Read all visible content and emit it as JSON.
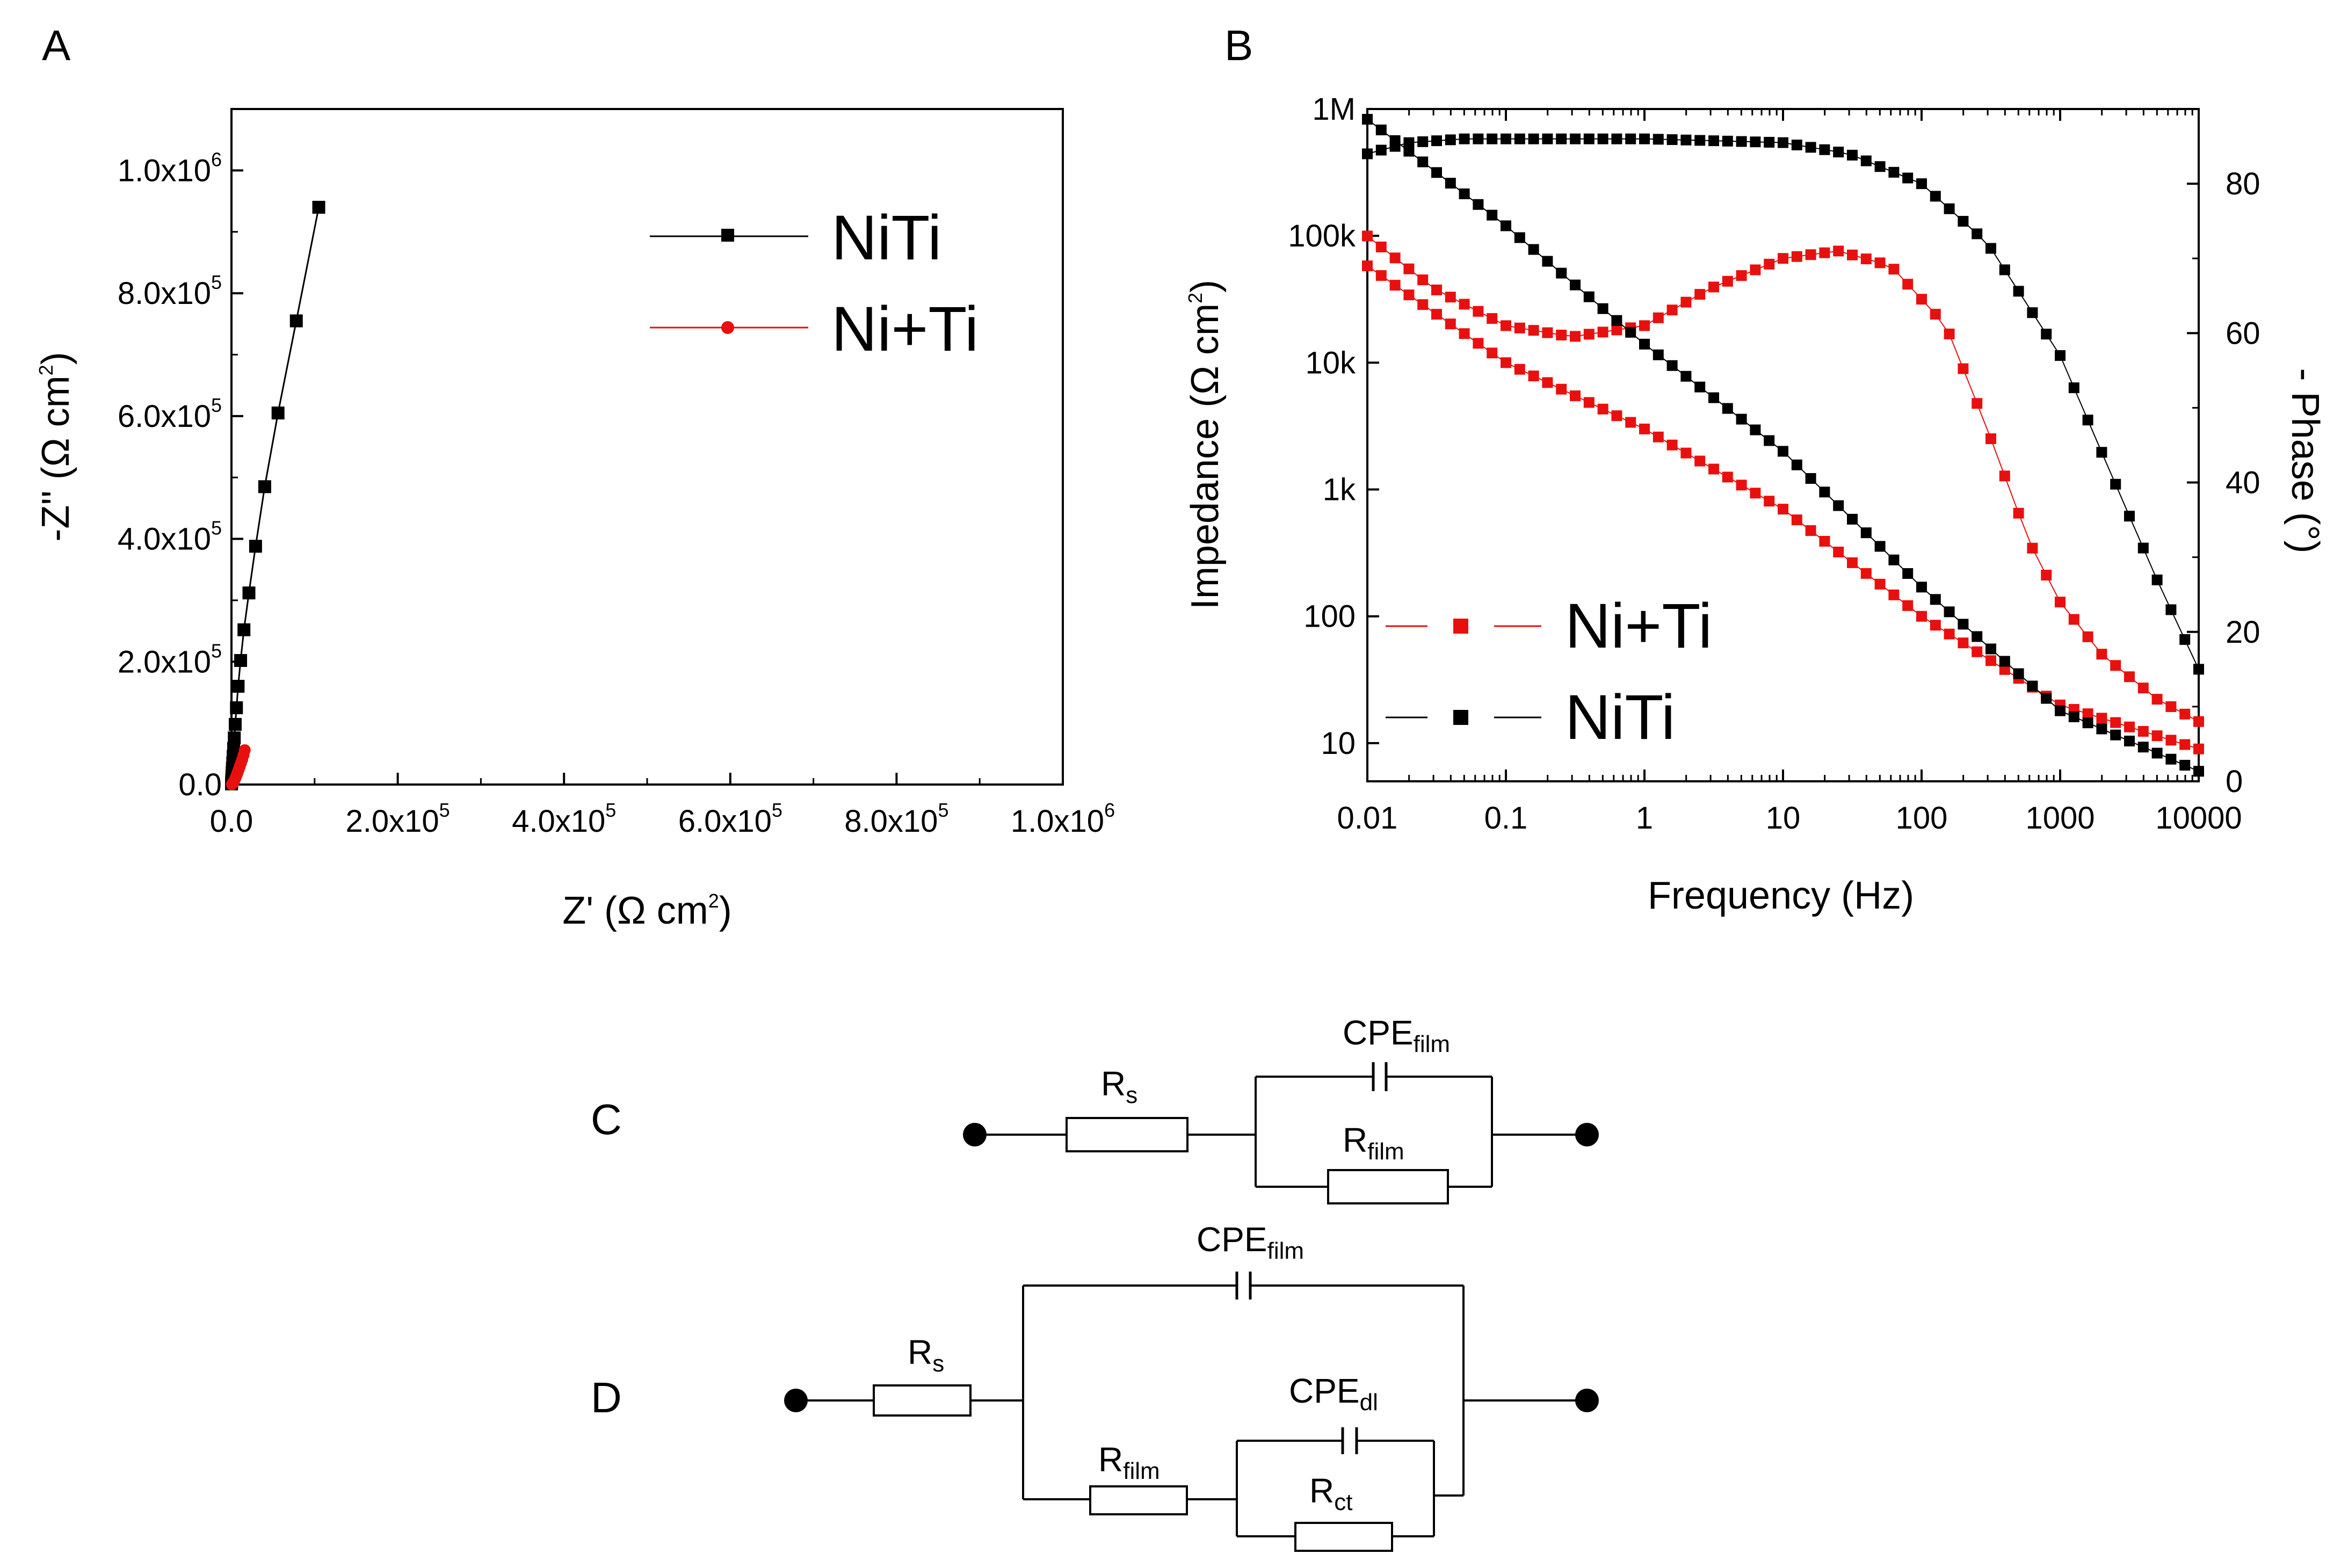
{
  "colors": {
    "NiTi": "#000000",
    "NiTiAlloy": "#000000",
    "Ni+Ti": "#e8100f"
  },
  "panels": {
    "A": "A",
    "B": "B",
    "C": "C",
    "D": "D"
  },
  "chart_data": [
    {
      "panel": "A",
      "type": "line",
      "title": "",
      "xlabel": {
        "main": "Z' (",
        "omega": "Ω",
        "unit": " cm",
        "sup": "2",
        "close": ")"
      },
      "ylabel": {
        "main": "-Z'' (",
        "omega": "Ω",
        "unit": " cm",
        "sup": "2",
        "close": ")"
      },
      "xlim": [
        0,
        1000000
      ],
      "ylim": [
        0,
        1100000
      ],
      "x_ticks": [
        {
          "value": 0,
          "mant": "0.0",
          "exp": ""
        },
        {
          "value": 200000,
          "mant": "2.0x10",
          "exp": "5"
        },
        {
          "value": 400000,
          "mant": "4.0x10",
          "exp": "5"
        },
        {
          "value": 600000,
          "mant": "6.0x10",
          "exp": "5"
        },
        {
          "value": 800000,
          "mant": "8.0x10",
          "exp": "5"
        },
        {
          "value": 1000000,
          "mant": "1.0x10",
          "exp": "6"
        }
      ],
      "y_ticks": [
        {
          "value": 0,
          "mant": "0.0",
          "exp": ""
        },
        {
          "value": 200000,
          "mant": "2.0x10",
          "exp": "5"
        },
        {
          "value": 400000,
          "mant": "4.0x10",
          "exp": "5"
        },
        {
          "value": 600000,
          "mant": "6.0x10",
          "exp": "5"
        },
        {
          "value": 800000,
          "mant": "8.0x10",
          "exp": "5"
        },
        {
          "value": 1000000,
          "mant": "1.0x10",
          "exp": "6"
        }
      ],
      "legend": {
        "position": "top-right"
      },
      "series": [
        {
          "name": "NiTi",
          "colorKey": "NiTi",
          "marker": "square",
          "points": [
            [
              105000,
              940000
            ],
            [
              78000,
              755000
            ],
            [
              56000,
              605000
            ],
            [
              40000,
              485000
            ],
            [
              29000,
              388000
            ],
            [
              21000,
              312000
            ],
            [
              15000,
              252000
            ],
            [
              11000,
              202000
            ],
            [
              8000,
              160000
            ],
            [
              6000,
              125000
            ],
            [
              4500,
              98000
            ],
            [
              3400,
              76000
            ],
            [
              2600,
              59000
            ],
            [
              2000,
              46000
            ],
            [
              1500,
              35000
            ],
            [
              1100,
              26000
            ],
            [
              800,
              19000
            ],
            [
              600,
              13500
            ],
            [
              400,
              9000
            ],
            [
              250,
              5500
            ],
            [
              150,
              3000
            ],
            [
              80,
              1000
            ]
          ]
        },
        {
          "name": "Ni+Ti",
          "colorKey": "Ni+Ti",
          "marker": "circle",
          "points": [
            [
              16000,
              56000
            ],
            [
              14500,
              48000
            ],
            [
              13000,
              41000
            ],
            [
              11500,
              35000
            ],
            [
              10000,
              29500
            ],
            [
              8700,
              24500
            ],
            [
              7500,
              20000
            ],
            [
              6400,
              16000
            ],
            [
              5400,
              12500
            ],
            [
              4500,
              9500
            ],
            [
              3600,
              7000
            ],
            [
              2800,
              5000
            ],
            [
              2100,
              3300
            ],
            [
              1500,
              2000
            ],
            [
              1000,
              1000
            ],
            [
              500,
              300
            ]
          ]
        }
      ]
    },
    {
      "panel": "B",
      "type": "scatter",
      "title": "",
      "xlabel": "Frequency (Hz)",
      "ylabel": {
        "main": "Impedance (",
        "omega": "Ω",
        "unit": " cm",
        "sup": "2",
        "close": ")"
      },
      "y2label": {
        "main": "- Phase (",
        "deg": "°",
        "close": ")"
      },
      "xscale": "log",
      "yscale": "log",
      "xlim": [
        0.01,
        10000
      ],
      "ylim": [
        5,
        1000000
      ],
      "y2lim": [
        0,
        90
      ],
      "x_ticks": [
        {
          "value": 0.01,
          "label": "0.01"
        },
        {
          "value": 0.1,
          "label": "0.1"
        },
        {
          "value": 1,
          "label": "1"
        },
        {
          "value": 10,
          "label": "10"
        },
        {
          "value": 100,
          "label": "100"
        },
        {
          "value": 1000,
          "label": "1000"
        },
        {
          "value": 10000,
          "label": "10000"
        }
      ],
      "y_ticks": [
        {
          "value": 10,
          "label": "10"
        },
        {
          "value": 100,
          "label": "100"
        },
        {
          "value": 1000,
          "label": "1k"
        },
        {
          "value": 10000,
          "label": "10k"
        },
        {
          "value": 100000,
          "label": "100k"
        },
        {
          "value": 1000000,
          "label": "1M"
        }
      ],
      "y2_ticks": [
        {
          "value": 0,
          "label": "0"
        },
        {
          "value": 20,
          "label": "20"
        },
        {
          "value": 40,
          "label": "40"
        },
        {
          "value": 60,
          "label": "60"
        },
        {
          "value": 80,
          "label": "80"
        }
      ],
      "legend": {
        "position": "bottom-left"
      },
      "series": [
        {
          "name": "Ni+Ti",
          "colorKey": "Ni+Ti",
          "axis": "left",
          "anchors": [
            [
              0.01,
              58000
            ],
            [
              0.1,
              10000
            ],
            [
              1,
              3000
            ],
            [
              10,
              700
            ],
            [
              100,
              100
            ],
            [
              1000,
              20
            ],
            [
              10000,
              9
            ]
          ]
        },
        {
          "name": "",
          "colorKey": "Ni+Ti",
          "axis": "right",
          "anchors": [
            [
              0.01,
              73
            ],
            [
              0.03,
              66
            ],
            [
              0.1,
              61
            ],
            [
              0.3,
              59.5
            ],
            [
              1,
              61
            ],
            [
              3,
              66
            ],
            [
              10,
              70
            ],
            [
              25,
              71
            ],
            [
              60,
              69
            ],
            [
              150,
              61
            ],
            [
              300,
              47
            ],
            [
              600,
              32
            ],
            [
              1000,
              24
            ],
            [
              2000,
              17
            ],
            [
              5000,
              11
            ],
            [
              10000,
              8
            ]
          ]
        },
        {
          "name": "NiTi",
          "colorKey": "NiTi",
          "axis": "left",
          "anchors": [
            [
              0.01,
              830000
            ],
            [
              0.1,
              120000
            ],
            [
              1,
              14000
            ],
            [
              10,
              2000
            ],
            [
              100,
              170
            ],
            [
              1000,
              18
            ],
            [
              10000,
              6
            ]
          ]
        },
        {
          "name": "",
          "colorKey": "NiTiAlloy",
          "axis": "right",
          "anchors": [
            [
              0.01,
              84
            ],
            [
              0.02,
              85.5
            ],
            [
              0.05,
              86
            ],
            [
              1,
              86
            ],
            [
              10,
              85.5
            ],
            [
              30,
              84
            ],
            [
              100,
              80
            ],
            [
              300,
              72
            ],
            [
              1000,
              57
            ],
            [
              2000,
              44
            ],
            [
              5000,
              27
            ],
            [
              10000,
              15
            ]
          ]
        }
      ]
    }
  ],
  "circuits": {
    "C": {
      "Rs": {
        "main": "R",
        "sub": "s"
      },
      "CPEfilm": {
        "main": "CPE",
        "sub": "film"
      },
      "Rfilm": {
        "main": "R",
        "sub": "film"
      }
    },
    "D": {
      "Rs": {
        "main": "R",
        "sub": "s"
      },
      "CPEfilm": {
        "main": "CPE",
        "sub": "film"
      },
      "Rfilm": {
        "main": "R",
        "sub": "film"
      },
      "CPEdl": {
        "main": "CPE",
        "sub": "dl"
      },
      "Rct": {
        "main": "R",
        "sub": "ct"
      }
    }
  }
}
